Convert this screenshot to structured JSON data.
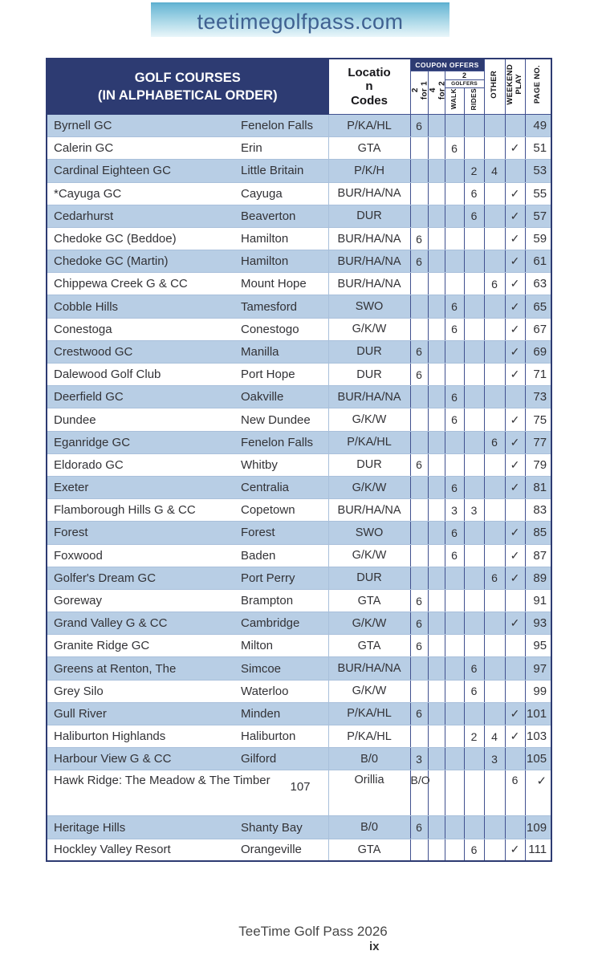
{
  "banner": {
    "text": "teetimegolfpass.com"
  },
  "table": {
    "header": {
      "title_line1": "GOLF COURSES",
      "title_line2": "(IN ALPHABETICAL ORDER)",
      "location_codes": "Locatio\nn\nCodes",
      "coupon_offers": "COUPON OFFERS",
      "two_for_one": "2\nfor 1",
      "four_for_two": "4\nfor 2",
      "golfers_count": "2",
      "golfers_label": "GOLFERS",
      "walk": "WALK",
      "rides": "RIDES",
      "other": "OTHER",
      "weekend": "WEEKEND\nPLAY",
      "page": "PAGE NO."
    },
    "rows": [
      {
        "name": "Byrnell GC",
        "location": "Fenelon Falls",
        "codes": "P/KA/HL",
        "c21": "6",
        "c42": "",
        "walk": "",
        "rides": "",
        "other": "",
        "weekend": "",
        "page": "49"
      },
      {
        "name": "Calerin GC",
        "location": "Erin",
        "codes": "GTA",
        "c21": "",
        "c42": "",
        "walk": "6",
        "rides": "",
        "other": "",
        "weekend": "✓",
        "page": "51"
      },
      {
        "name": "Cardinal Eighteen GC",
        "location": "Little Britain",
        "codes": "P/K/H",
        "c21": "",
        "c42": "",
        "walk": "",
        "rides": "2",
        "other": "4",
        "weekend": "",
        "page": "53"
      },
      {
        "name": "*Cayuga GC",
        "location": "Cayuga",
        "codes": "BUR/HA/NA",
        "c21": "",
        "c42": "",
        "walk": "",
        "rides": "6",
        "other": "",
        "weekend": "✓",
        "page": "55"
      },
      {
        "name": "Cedarhurst",
        "location": "Beaverton",
        "codes": "DUR",
        "c21": "",
        "c42": "",
        "walk": "",
        "rides": "6",
        "other": "",
        "weekend": "✓",
        "page": "57"
      },
      {
        "name": "Chedoke GC (Beddoe)",
        "location": "Hamilton",
        "codes": "BUR/HA/NA",
        "c21": "6",
        "c42": "",
        "walk": "",
        "rides": "",
        "other": "",
        "weekend": "✓",
        "page": "59"
      },
      {
        "name": "Chedoke GC (Martin)",
        "location": "Hamilton",
        "codes": "BUR/HA/NA",
        "c21": "6",
        "c42": "",
        "walk": "",
        "rides": "",
        "other": "",
        "weekend": "✓",
        "page": "61"
      },
      {
        "name": "Chippewa Creek G & CC",
        "location": "Mount Hope",
        "codes": "BUR/HA/NA",
        "c21": "",
        "c42": "",
        "walk": "",
        "rides": "",
        "other": "6",
        "weekend": "✓",
        "page": "63"
      },
      {
        "name": "Cobble Hills",
        "location": "Tamesford",
        "codes": "SWO",
        "c21": "",
        "c42": "",
        "walk": "6",
        "rides": "",
        "other": "",
        "weekend": "✓",
        "page": "65"
      },
      {
        "name": "Conestoga",
        "location": "Conestogo",
        "codes": "G/K/W",
        "c21": "",
        "c42": "",
        "walk": "6",
        "rides": "",
        "other": "",
        "weekend": "✓",
        "page": "67"
      },
      {
        "name": "Crestwood GC",
        "location": "Manilla",
        "codes": "DUR",
        "c21": "6",
        "c42": "",
        "walk": "",
        "rides": "",
        "other": "",
        "weekend": "✓",
        "page": "69"
      },
      {
        "name": "Dalewood Golf Club",
        "location": "Port Hope",
        "codes": "DUR",
        "c21": "6",
        "c42": "",
        "walk": "",
        "rides": "",
        "other": "",
        "weekend": "✓",
        "page": "71"
      },
      {
        "name": "Deerfield GC",
        "location": "Oakville",
        "codes": "BUR/HA/NA",
        "c21": "",
        "c42": "",
        "walk": "6",
        "rides": "",
        "other": "",
        "weekend": "",
        "page": "73"
      },
      {
        "name": "Dundee",
        "location": "New Dundee",
        "codes": "G/K/W",
        "c21": "",
        "c42": "",
        "walk": "6",
        "rides": "",
        "other": "",
        "weekend": "✓",
        "page": "75"
      },
      {
        "name": "Eganridge GC",
        "location": "Fenelon Falls",
        "codes": "P/KA/HL",
        "c21": "",
        "c42": "",
        "walk": "",
        "rides": "",
        "other": "6",
        "weekend": "✓",
        "page": "77"
      },
      {
        "name": "Eldorado GC",
        "location": "Whitby",
        "codes": "DUR",
        "c21": "6",
        "c42": "",
        "walk": "",
        "rides": "",
        "other": "",
        "weekend": "✓",
        "page": "79"
      },
      {
        "name": "Exeter",
        "location": "Centralia",
        "codes": "G/K/W",
        "c21": "",
        "c42": "",
        "walk": "6",
        "rides": "",
        "other": "",
        "weekend": "✓",
        "page": "81"
      },
      {
        "name": "Flamborough Hills  G & CC",
        "location": "Copetown",
        "codes": "BUR/HA/NA",
        "c21": "",
        "c42": "",
        "walk": "3",
        "rides": "3",
        "other": "",
        "weekend": "",
        "page": "83"
      },
      {
        "name": "Forest",
        "location": "Forest",
        "codes": "SWO",
        "c21": "",
        "c42": "",
        "walk": "6",
        "rides": "",
        "other": "",
        "weekend": "✓",
        "page": "85"
      },
      {
        "name": "Foxwood",
        "location": "Baden",
        "codes": "G/K/W",
        "c21": "",
        "c42": "",
        "walk": "6",
        "rides": "",
        "other": "",
        "weekend": "✓",
        "page": "87"
      },
      {
        "name": "Golfer's Dream GC",
        "location": "Port Perry",
        "codes": "DUR",
        "c21": "",
        "c42": "",
        "walk": "",
        "rides": "",
        "other": "6",
        "weekend": "✓",
        "page": "89"
      },
      {
        "name": "Goreway",
        "location": "Brampton",
        "codes": "GTA",
        "c21": "6",
        "c42": "",
        "walk": "",
        "rides": "",
        "other": "",
        "weekend": "",
        "page": "91"
      },
      {
        "name": "Grand Valley G & CC",
        "location": "Cambridge",
        "codes": "G/K/W",
        "c21": "6",
        "c42": "",
        "walk": "",
        "rides": "",
        "other": "",
        "weekend": "✓",
        "page": "93"
      },
      {
        "name": "Granite Ridge GC",
        "location": "Milton",
        "codes": "GTA",
        "c21": "6",
        "c42": "",
        "walk": "",
        "rides": "",
        "other": "",
        "weekend": "",
        "page": "95"
      },
      {
        "name": "Greens at Renton, The",
        "location": "Simcoe",
        "codes": "BUR/HA/NA",
        "c21": "",
        "c42": "",
        "walk": "",
        "rides": "6",
        "other": "",
        "weekend": "",
        "page": "97"
      },
      {
        "name": "Grey Silo",
        "location": "Waterloo",
        "codes": "G/K/W",
        "c21": "",
        "c42": "",
        "walk": "",
        "rides": "6",
        "other": "",
        "weekend": "",
        "page": "99"
      },
      {
        "name": "Gull River",
        "location": "Minden",
        "codes": "P/KA/HL",
        "c21": "6",
        "c42": "",
        "walk": "",
        "rides": "",
        "other": "",
        "weekend": "✓",
        "page": "101"
      },
      {
        "name": "Haliburton Highlands",
        "location": "Haliburton",
        "codes": "P/KA/HL",
        "c21": "",
        "c42": "",
        "walk": "",
        "rides": "2",
        "other": "4",
        "weekend": "✓",
        "page": "103"
      },
      {
        "name": "Harbour View G & CC",
        "location": "Gilford",
        "codes": "B/0",
        "c21": "3",
        "c42": "",
        "walk": "",
        "rides": "",
        "other": "3",
        "weekend": "",
        "page": "105"
      },
      {
        "name": "Hawk Ridge: The Meadow & The Timber",
        "location": "",
        "loc2": "107",
        "codes": "Orillia",
        "c21": "B/O",
        "c42": "",
        "walk": "",
        "rides": "",
        "other": "",
        "weekend": "6",
        "page": "✓",
        "tall": true
      },
      {
        "name": "Heritage Hills",
        "location": "Shanty Bay",
        "codes": "B/0",
        "c21": "6",
        "c42": "",
        "walk": "",
        "rides": "",
        "other": "",
        "weekend": "",
        "page": "109"
      },
      {
        "name": "Hockley Valley Resort",
        "location": "Orangeville",
        "codes": "GTA",
        "c21": "",
        "c42": "",
        "walk": "",
        "rides": "6",
        "other": "",
        "weekend": "✓",
        "page": "111"
      }
    ]
  },
  "footer": {
    "title": "TeeTime Golf Pass 2026",
    "page_roman": "ix"
  }
}
